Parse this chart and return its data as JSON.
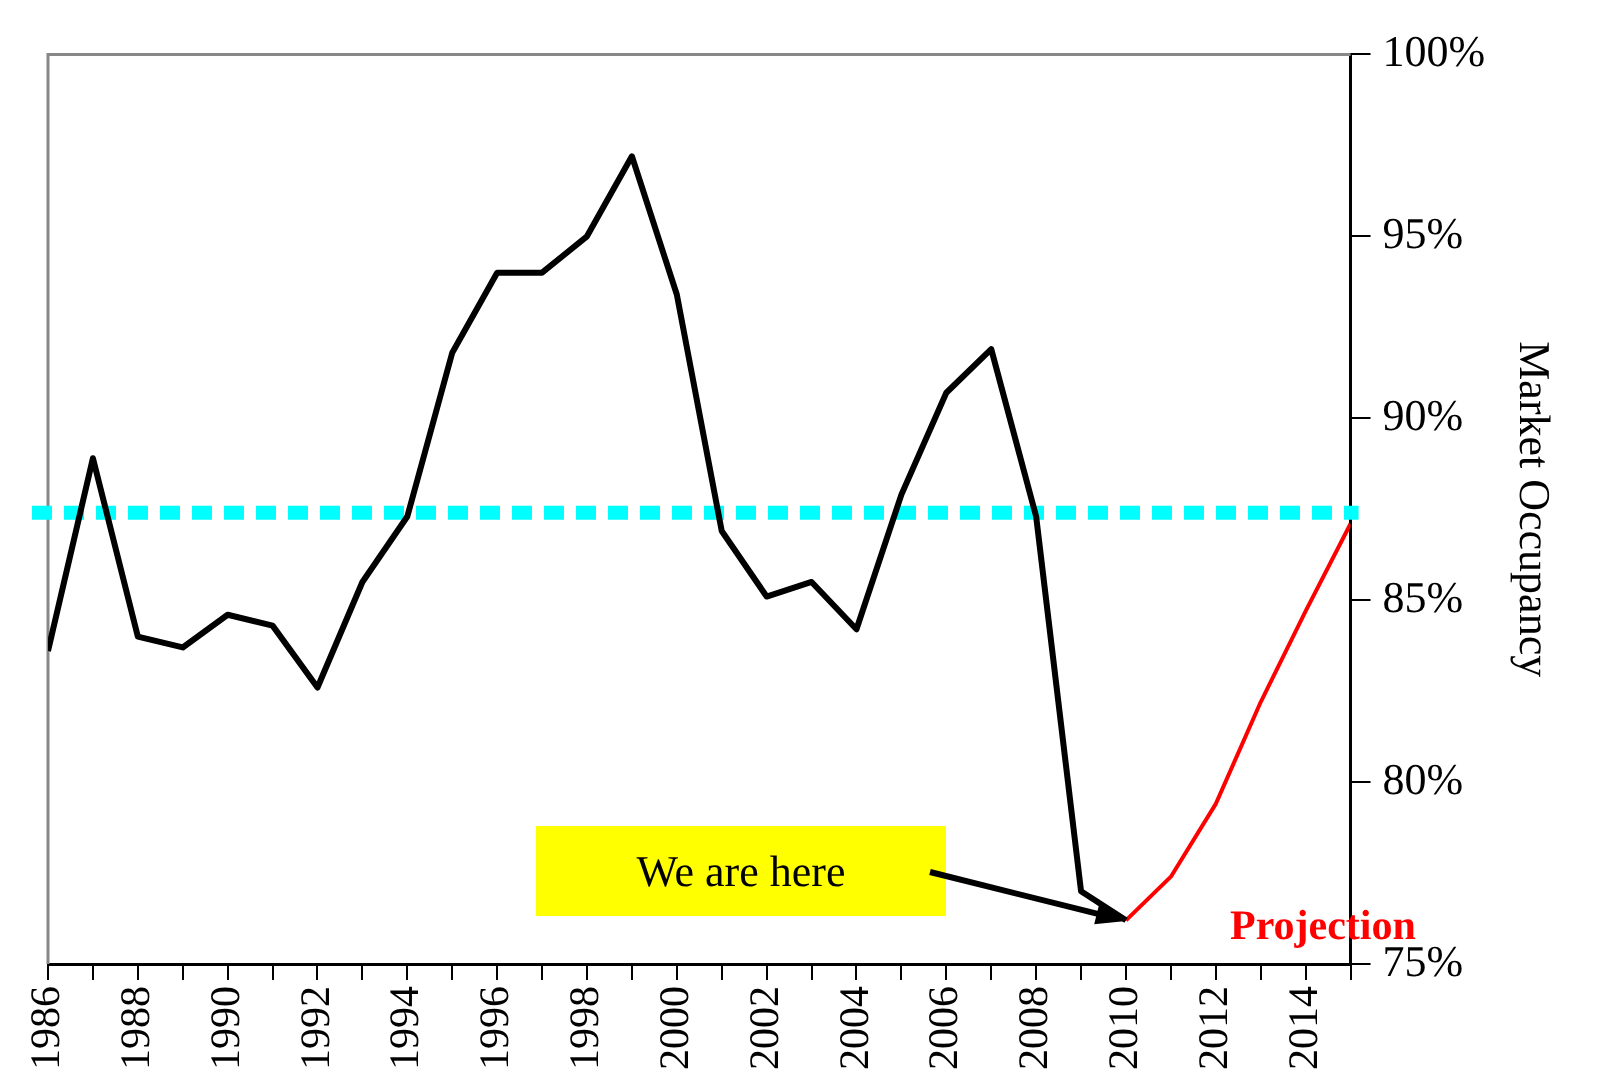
{
  "chart_data": {
    "type": "line",
    "ylabel": "Market Occupancy",
    "x": [
      1986,
      1987,
      1988,
      1989,
      1990,
      1991,
      1992,
      1993,
      1994,
      1995,
      1996,
      1997,
      1998,
      1999,
      2000,
      2001,
      2002,
      2003,
      2004,
      2005,
      2006,
      2007,
      2008,
      2009,
      2010
    ],
    "series": [
      {
        "color": "#000000",
        "values": [
          83.6,
          88.9,
          84.0,
          83.7,
          84.6,
          84.3,
          82.6,
          85.5,
          87.3,
          91.8,
          94.0,
          94.0,
          95.0,
          97.2,
          93.4,
          86.9,
          85.1,
          85.5,
          84.2,
          87.9,
          90.7,
          91.9,
          87.3,
          77.0,
          76.2
        ]
      },
      {
        "name": "Projection",
        "color": "#ff0000",
        "x": [
          2010,
          2011,
          2012,
          2013,
          2014,
          2015
        ],
        "values": [
          76.2,
          77.4,
          79.4,
          82.2,
          84.7,
          87.1
        ]
      }
    ],
    "xlim": [
      1986,
      2015
    ],
    "xticks": [
      1986,
      {
        "value": 1987,
        "label": null
      },
      1988,
      {
        "value": 1989,
        "label": null
      },
      1990,
      {
        "value": 1991,
        "label": null
      },
      1992,
      {
        "value": 1993,
        "label": null
      },
      1994,
      {
        "value": 1995,
        "label": null
      },
      1996,
      {
        "value": 1997,
        "label": null
      },
      1998,
      {
        "value": 1999,
        "label": null
      },
      2000,
      {
        "value": 2001,
        "label": null
      },
      2002,
      {
        "value": 2003,
        "label": null
      },
      2004,
      {
        "value": 2005,
        "label": null
      },
      2006,
      {
        "value": 2007,
        "label": null
      },
      2008,
      {
        "value": 2009,
        "label": null
      },
      2010,
      {
        "value": 2011,
        "label": null
      },
      2012,
      {
        "value": 2013,
        "label": null
      },
      2014,
      {
        "value": 2015,
        "label": null
      }
    ],
    "ylim": [
      75,
      100
    ],
    "yticks": [
      {
        "value": 75,
        "label": "75%"
      },
      {
        "value": 80,
        "label": "80%"
      },
      {
        "value": 85,
        "label": "85%"
      },
      {
        "value": 90,
        "label": "90%"
      },
      {
        "value": 95,
        "label": "95%"
      },
      {
        "value": 100,
        "label": "100%"
      }
    ],
    "ref_lines": [
      {
        "axis": "y",
        "value": 87.4,
        "color": "#00ffff",
        "line_style": "dashed"
      }
    ],
    "annotations": [
      "We are here"
    ],
    "grid": false,
    "legend": false,
    "marker": "none",
    "line_style": "solid"
  }
}
